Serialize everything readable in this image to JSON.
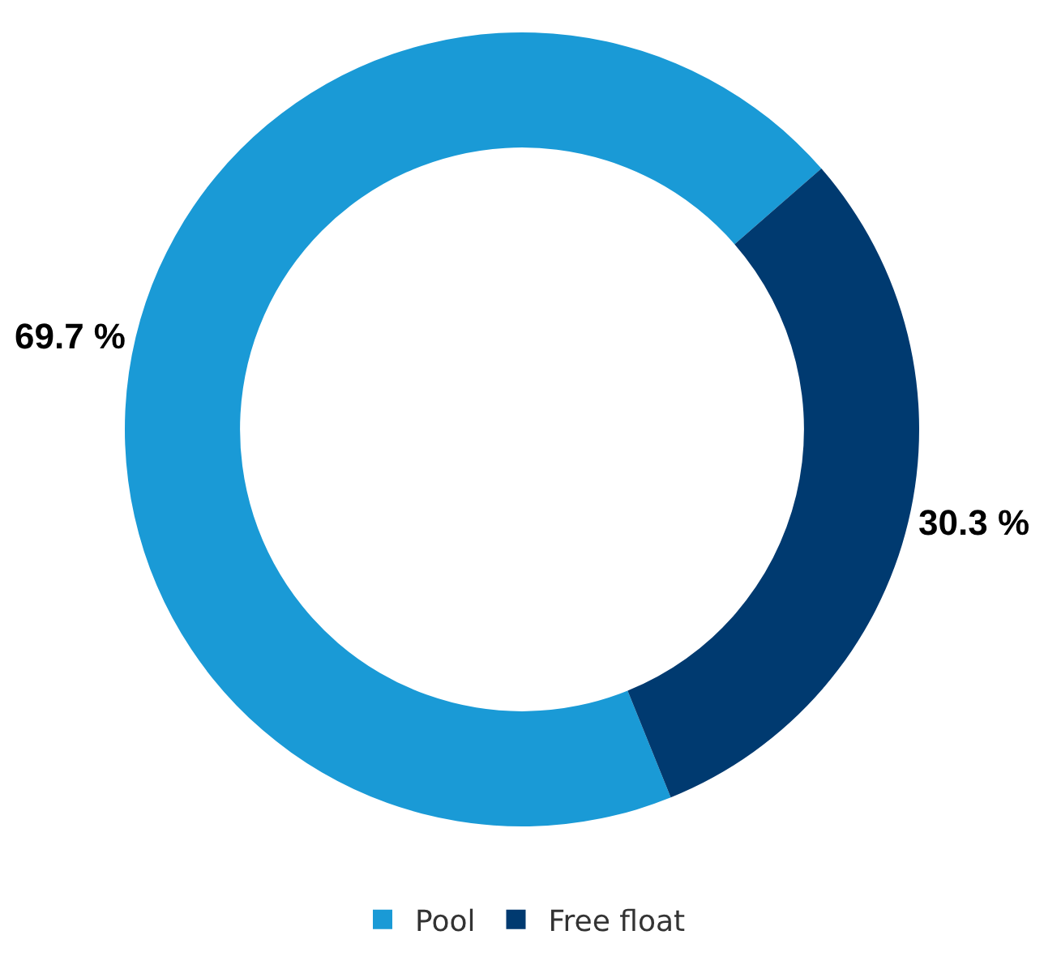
{
  "chart_data": {
    "type": "donut",
    "categories": [
      "Pool",
      "Free float"
    ],
    "values": [
      69.7,
      30.3
    ],
    "colors": [
      "#1a9ad6",
      "#003a70"
    ],
    "value_labels": [
      "69.7 %",
      "30.3 %"
    ],
    "legend": "bottom"
  }
}
